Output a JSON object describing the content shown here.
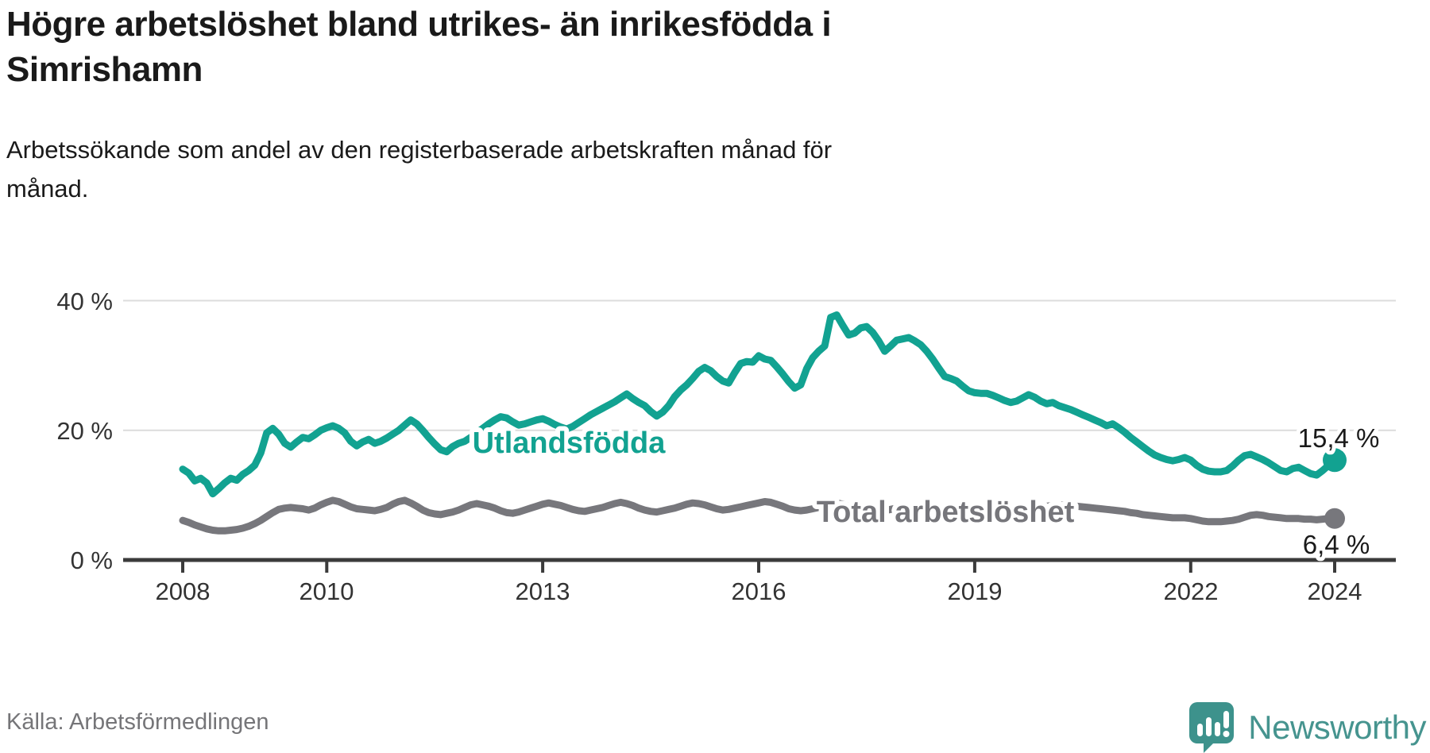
{
  "header": {
    "title_lines": [
      "Högre arbetslöshet bland utrikes- än inrikesfödda i",
      "Simrishamn"
    ],
    "subtitle_lines": [
      "Arbetssökande som andel av den registerbaserade arbetskraften månad för",
      "månad."
    ]
  },
  "footer": {
    "source": "Källa: Arbetsförmedlingen",
    "brand": "Newsworthy"
  },
  "colors": {
    "accent_teal": "#12a291",
    "line_gray": "#77777c",
    "grid": "#dcdcdc",
    "axis": "#3b3b3b",
    "logo_teal": "#3d928c"
  },
  "chart_data": {
    "type": "line",
    "title": "Högre arbetslöshet bland utrikes- än inrikesfödda i Simrishamn",
    "subtitle": "Arbetssökande som andel av den registerbaserade arbetskraften månad för månad.",
    "grid": "horizontal",
    "legend_position": "inline-labels",
    "start_year": 2008,
    "points_per_year": 12,
    "x_axis": {
      "ticks": [
        "2008",
        "2010",
        "2013",
        "2016",
        "2019",
        "2022",
        "2024"
      ],
      "tick_years": [
        2008,
        2010,
        2013,
        2016,
        2019,
        2022,
        2024
      ],
      "range": [
        2008,
        2024.8
      ]
    },
    "y_axis": {
      "ticks": [
        "0 %",
        "20 %",
        "40 %"
      ],
      "tick_values": [
        0,
        20,
        40
      ],
      "range": [
        0,
        42
      ]
    },
    "series": [
      {
        "name": "Total arbetslöshet",
        "color": "#77777c",
        "end_label": "6,4 %",
        "end_value": 6.4,
        "dot_radius": 13,
        "values": [
          6.1,
          5.8,
          5.4,
          5.1,
          4.8,
          4.6,
          4.5,
          4.5,
          4.6,
          4.7,
          4.9,
          5.2,
          5.6,
          6.1,
          6.7,
          7.3,
          7.8,
          8.0,
          8.1,
          8.0,
          7.9,
          7.7,
          8.0,
          8.5,
          8.9,
          9.2,
          9.0,
          8.6,
          8.2,
          7.9,
          7.8,
          7.7,
          7.6,
          7.8,
          8.1,
          8.6,
          9.0,
          9.2,
          8.8,
          8.3,
          7.7,
          7.3,
          7.1,
          7.0,
          7.2,
          7.4,
          7.7,
          8.1,
          8.5,
          8.7,
          8.5,
          8.3,
          8.0,
          7.6,
          7.3,
          7.2,
          7.4,
          7.7,
          8.0,
          8.3,
          8.6,
          8.8,
          8.6,
          8.4,
          8.1,
          7.8,
          7.6,
          7.5,
          7.7,
          7.9,
          8.1,
          8.4,
          8.7,
          8.9,
          8.7,
          8.4,
          8.0,
          7.7,
          7.5,
          7.4,
          7.6,
          7.8,
          8.0,
          8.3,
          8.6,
          8.8,
          8.7,
          8.5,
          8.2,
          7.9,
          7.7,
          7.8,
          8.0,
          8.2,
          8.4,
          8.6,
          8.8,
          9.0,
          8.9,
          8.6,
          8.3,
          7.9,
          7.7,
          7.6,
          7.7,
          7.9,
          8.1,
          8.4,
          8.7,
          8.8,
          8.6,
          8.3,
          7.9,
          7.6,
          7.4,
          7.3,
          7.4,
          7.6,
          7.8,
          8.0,
          8.2,
          8.3,
          8.1,
          7.8,
          7.5,
          7.2,
          7.1,
          7.0,
          7.2,
          7.4,
          7.6,
          7.9,
          8.2,
          8.3,
          8.2,
          8.0,
          7.8,
          7.7,
          7.6,
          7.7,
          7.9,
          8.0,
          8.1,
          8.2,
          8.3,
          8.4,
          8.4,
          8.5,
          8.4,
          8.3,
          8.2,
          8.1,
          8.0,
          7.9,
          7.8,
          7.7,
          7.6,
          7.5,
          7.3,
          7.2,
          7.0,
          6.9,
          6.8,
          6.7,
          6.6,
          6.5,
          6.5,
          6.5,
          6.4,
          6.2,
          6.0,
          5.9,
          5.9,
          5.9,
          6.0,
          6.1,
          6.3,
          6.6,
          6.9,
          7.0,
          6.9,
          6.7,
          6.6,
          6.5,
          6.4,
          6.4,
          6.4,
          6.3,
          6.3,
          6.2,
          6.3,
          6.4,
          6.4
        ]
      },
      {
        "name": "Utlandsfödda",
        "color": "#12a291",
        "end_label": "15,4 %",
        "end_value": 15.4,
        "dot_radius": 15,
        "values": [
          14.0,
          13.4,
          12.2,
          12.6,
          11.9,
          10.2,
          11.0,
          11.9,
          12.6,
          12.3,
          13.2,
          13.8,
          14.6,
          16.5,
          19.6,
          20.3,
          19.4,
          18.0,
          17.4,
          18.2,
          18.9,
          18.7,
          19.3,
          20.0,
          20.4,
          20.7,
          20.3,
          19.6,
          18.3,
          17.6,
          18.2,
          18.6,
          18.0,
          18.3,
          18.8,
          19.4,
          20.0,
          20.8,
          21.6,
          21.0,
          20.0,
          18.9,
          17.9,
          17.0,
          16.7,
          17.5,
          18.0,
          18.3,
          18.9,
          19.6,
          20.3,
          21.0,
          21.6,
          22.1,
          21.9,
          21.3,
          20.8,
          21.0,
          21.3,
          21.6,
          21.8,
          21.4,
          20.9,
          20.5,
          20.2,
          20.6,
          21.2,
          21.8,
          22.4,
          22.9,
          23.4,
          23.9,
          24.4,
          25.0,
          25.6,
          24.9,
          24.3,
          23.8,
          22.9,
          22.2,
          22.8,
          23.8,
          25.2,
          26.2,
          27.0,
          28.0,
          29.1,
          29.7,
          29.2,
          28.3,
          27.6,
          27.3,
          28.9,
          30.3,
          30.6,
          30.5,
          31.5,
          31.0,
          30.8,
          29.8,
          28.7,
          27.5,
          26.5,
          27.0,
          29.5,
          31.2,
          32.2,
          33.0,
          37.4,
          37.8,
          36.2,
          34.7,
          35.0,
          35.8,
          36.0,
          35.1,
          33.8,
          32.2,
          33.0,
          33.9,
          34.1,
          34.3,
          33.8,
          33.2,
          32.2,
          31.0,
          29.6,
          28.3,
          28.0,
          27.6,
          26.8,
          26.1,
          25.8,
          25.7,
          25.7,
          25.4,
          25.0,
          24.6,
          24.3,
          24.5,
          25.0,
          25.5,
          25.1,
          24.5,
          24.1,
          24.3,
          23.8,
          23.5,
          23.2,
          22.8,
          22.4,
          22.0,
          21.6,
          21.2,
          20.7,
          21.0,
          20.4,
          19.7,
          18.9,
          18.2,
          17.5,
          16.8,
          16.2,
          15.8,
          15.5,
          15.3,
          15.5,
          15.8,
          15.4,
          14.6,
          14.0,
          13.7,
          13.6,
          13.6,
          13.8,
          14.5,
          15.4,
          16.1,
          16.3,
          15.9,
          15.5,
          15.0,
          14.4,
          13.8,
          13.6,
          14.1,
          14.3,
          13.8,
          13.3,
          13.1,
          13.8,
          14.6,
          15.4
        ]
      }
    ]
  }
}
